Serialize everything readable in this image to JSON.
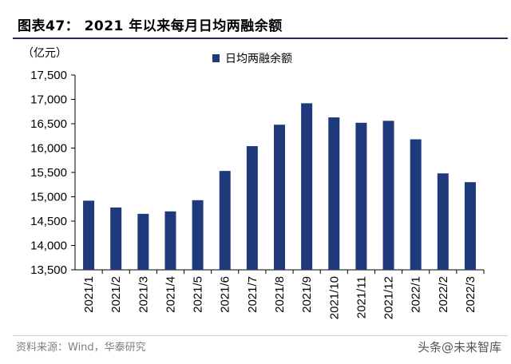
{
  "header": {
    "title": "图表47：  2021 年以来每月日均两融余额"
  },
  "footer": {
    "source": "资料来源：Wind，华泰研究",
    "watermark": "头条@未来智库"
  },
  "colors": {
    "bar": "#1f3a7a",
    "axis": "#000000",
    "title_rule": "#1f2f5a"
  },
  "chart_data": {
    "type": "bar",
    "title": "2021 年以来每月日均两融余额",
    "unit_label": "（亿元）",
    "categories": [
      "2021/1",
      "2021/2",
      "2021/3",
      "2021/4",
      "2021/5",
      "2021/6",
      "2021/7",
      "2021/8",
      "2021/9",
      "2021/10",
      "2021/11",
      "2021/12",
      "2022/1",
      "2022/2",
      "2022/3"
    ],
    "series": [
      {
        "name": "日均两融余额",
        "values": [
          14920,
          14780,
          14650,
          14700,
          14930,
          15530,
          16040,
          16480,
          16920,
          16630,
          16520,
          16560,
          16180,
          15480,
          15300
        ]
      }
    ],
    "ylim": [
      13500,
      17500
    ],
    "yticks": [
      13500,
      14000,
      14500,
      15000,
      15500,
      16000,
      16500,
      17000,
      17500
    ],
    "ytick_labels": [
      "13,500",
      "14,000",
      "14,500",
      "15,000",
      "15,500",
      "16,000",
      "16,500",
      "17,000",
      "17,500"
    ],
    "legend_position": "top-center",
    "grid": false
  }
}
